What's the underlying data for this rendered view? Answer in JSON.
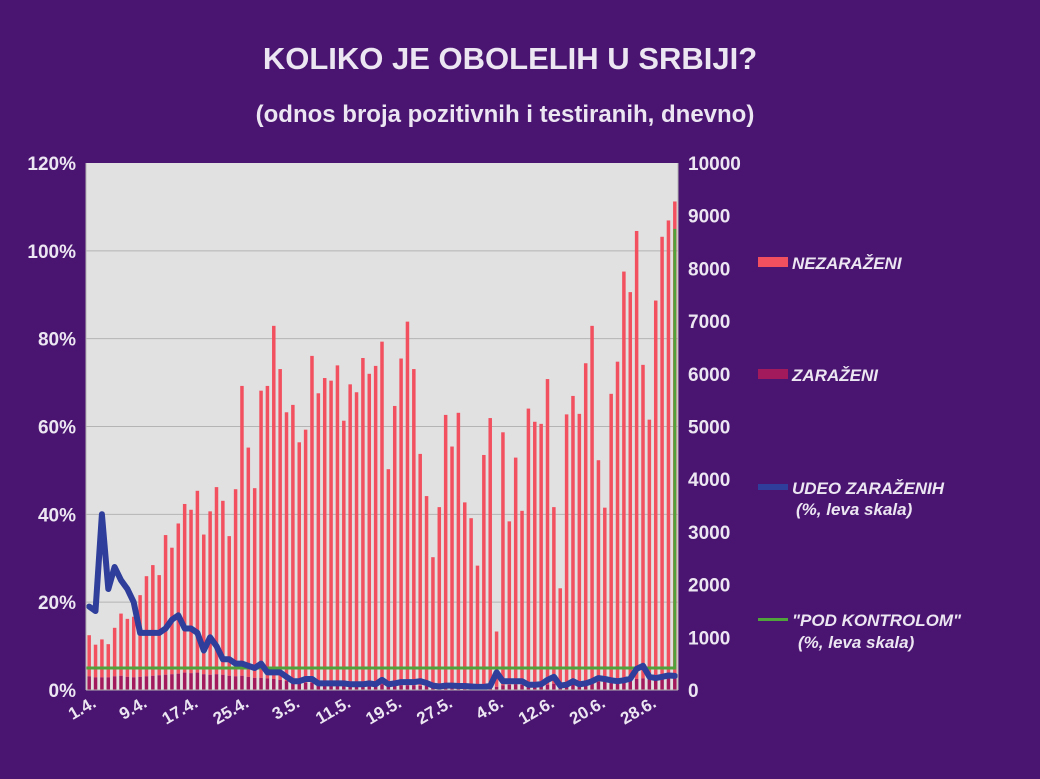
{
  "chart_data": {
    "type": "bar",
    "title": "KOLIKO JE OBOLELIH U SRBIJI?",
    "subtitle": "(odnos broja pozitivnih i testiranih, dnevno)",
    "x_tick_labels": [
      "1.4.",
      "9.4.",
      "17.4.",
      "25.4.",
      "3.5.",
      "11.5.",
      "19.5.",
      "27.5.",
      "4.6.",
      "12.6.",
      "20.6.",
      "28.6."
    ],
    "left_axis": {
      "ticks": [
        "0%",
        "20%",
        "40%",
        "60%",
        "80%",
        "100%",
        "120%"
      ],
      "min": 0,
      "max": 120
    },
    "right_axis": {
      "ticks": [
        "0",
        "1000",
        "2000",
        "3000",
        "4000",
        "5000",
        "6000",
        "7000",
        "8000",
        "9000",
        "10000"
      ],
      "min": 0,
      "max": 10000
    },
    "grid": true,
    "legend_position": "right",
    "series": [
      {
        "name": "NEZARAŽENI",
        "color": "#f2505f",
        "axis": "right",
        "kind": "bar",
        "values": [
          780,
          620,
          720,
          630,
          920,
          1180,
          1100,
          1150,
          1550,
          1900,
          2100,
          1900,
          2650,
          2400,
          2850,
          3200,
          3100,
          3450,
          2650,
          3100,
          3550,
          3300,
          2650,
          3550,
          5500,
          4350,
          3600,
          5450,
          5550,
          6700,
          5900,
          5100,
          5250,
          4550,
          4800,
          6200,
          5500,
          5800,
          5750,
          6050,
          5000,
          5700,
          5550,
          6200,
          5900,
          6050,
          6500,
          4100,
          5300,
          6200,
          6900,
          6000,
          4400,
          3600,
          2450,
          3400,
          5150,
          4550,
          5200,
          3500,
          3200,
          2300,
          4400,
          5100,
          1050,
          4800,
          3100,
          4300,
          3300,
          5250,
          5000,
          4950,
          5800,
          3350,
          1800,
          5100,
          5450,
          5100,
          6050,
          6750,
          4200,
          3300,
          5450,
          6050,
          7750,
          7350,
          8500,
          5950,
          4900,
          7150,
          8350,
          8650,
          9000
        ],
        "values_note": ""
      },
      {
        "name": "ZARAŽENI",
        "color": "#a31a5c",
        "axis": "right",
        "kind": "bar",
        "values": [
          260,
          240,
          240,
          240,
          260,
          270,
          250,
          240,
          250,
          260,
          270,
          280,
          290,
          300,
          310,
          330,
          320,
          330,
          300,
          290,
          300,
          290,
          270,
          260,
          270,
          250,
          230,
          230,
          220,
          210,
          190,
          170,
          160,
          150,
          140,
          140,
          130,
          120,
          120,
          110,
          110,
          100,
          100,
          100,
          100,
          100,
          110,
          90,
          90,
          90,
          90,
          90,
          80,
          80,
          70,
          70,
          70,
          70,
          60,
          60,
          60,
          60,
          60,
          60,
          60,
          90,
          100,
          110,
          100,
          90,
          90,
          100,
          100,
          120,
          130,
          130,
          130,
          140,
          150,
          160,
          160,
          160,
          170,
          180,
          190,
          200,
          210,
          220,
          230,
          240,
          250,
          260,
          270
        ]
      },
      {
        "name": "UDEO ZARAŽENIH",
        "name_line2": "(%, leva skala)",
        "color": "#2e3e9a",
        "axis": "left",
        "kind": "line",
        "values": [
          19,
          18,
          40,
          23,
          28,
          25,
          23,
          20,
          13,
          13,
          13,
          13,
          14,
          16,
          17,
          14,
          14,
          13,
          9,
          12,
          10,
          7,
          7,
          6,
          6,
          5.5,
          5,
          6,
          4,
          4,
          4,
          3,
          2,
          2,
          2.5,
          2.5,
          1.5,
          1.5,
          1.5,
          1.5,
          1.5,
          1.3,
          1.3,
          1.3,
          1.5,
          1.3,
          2.3,
          1.3,
          1.5,
          1.8,
          1.8,
          1.8,
          2.0,
          1.6,
          1.0,
          0.8,
          1.0,
          1.0,
          0.9,
          0.9,
          0.8,
          0.7,
          0.7,
          0.9,
          4.0,
          2.0,
          2.0,
          2.0,
          2.0,
          1.2,
          1.2,
          1.3,
          2.3,
          3.0,
          1.0,
          1.2,
          2.0,
          1.3,
          1.5,
          2.0,
          2.7,
          2.5,
          2.2,
          2.0,
          2.2,
          2.6,
          4.8,
          5.5,
          3.0,
          2.7,
          3.0,
          3.3,
          3.2
        ]
      },
      {
        "name": "\"POD KONTROLOM\"",
        "name_line2": "(%, leva skala)",
        "color": "#4fa33a",
        "axis": "left",
        "kind": "line",
        "value": 5,
        "end_value": 105
      }
    ]
  }
}
